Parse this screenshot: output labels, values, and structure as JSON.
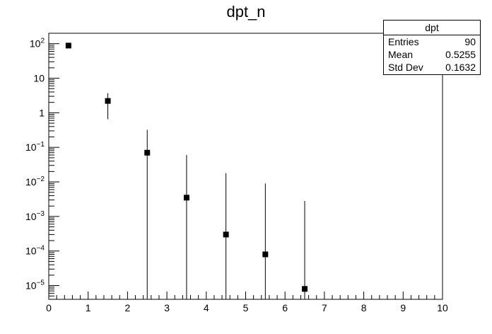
{
  "chart_data": {
    "type": "scatter",
    "title": "dpt_n",
    "xlabel": "",
    "ylabel": "",
    "xlim": [
      0,
      10
    ],
    "ylim": [
      4e-06,
      200
    ],
    "yscale": "log",
    "grid": false,
    "x_ticks": [
      "0",
      "1",
      "2",
      "3",
      "4",
      "5",
      "6",
      "7",
      "8",
      "9",
      "10"
    ],
    "y_ticks": [
      {
        "base": "10",
        "exp": "2"
      },
      {
        "base": "10",
        "exp": ""
      },
      {
        "base": "1",
        "exp": ""
      },
      {
        "base": "10",
        "exp": "−1"
      },
      {
        "base": "10",
        "exp": "−2"
      },
      {
        "base": "10",
        "exp": "−3"
      },
      {
        "base": "10",
        "exp": "−4"
      },
      {
        "base": "10",
        "exp": "−5"
      }
    ],
    "points": [
      {
        "x": 0.5,
        "y": 88,
        "err_low": 88,
        "err_high": 88
      },
      {
        "x": 1.5,
        "y": 2.2,
        "err_low": 0.65,
        "err_high": 3.7
      },
      {
        "x": 2.5,
        "y": 0.07,
        "err_low": 4e-06,
        "err_high": 0.32
      },
      {
        "x": 3.5,
        "y": 0.0035,
        "err_low": 4e-06,
        "err_high": 0.06
      },
      {
        "x": 4.5,
        "y": 0.0003,
        "err_low": 4e-06,
        "err_high": 0.018
      },
      {
        "x": 5.5,
        "y": 8e-05,
        "err_low": 4e-06,
        "err_high": 0.009
      },
      {
        "x": 6.5,
        "y": 8e-06,
        "err_low": 4e-06,
        "err_high": 0.0028
      }
    ],
    "stats": {
      "name": "dpt",
      "rows": [
        {
          "label": "Entries",
          "value": "90"
        },
        {
          "label": "Mean",
          "value": "0.5255"
        },
        {
          "label": "Std Dev",
          "value": "0.1632"
        }
      ]
    }
  }
}
